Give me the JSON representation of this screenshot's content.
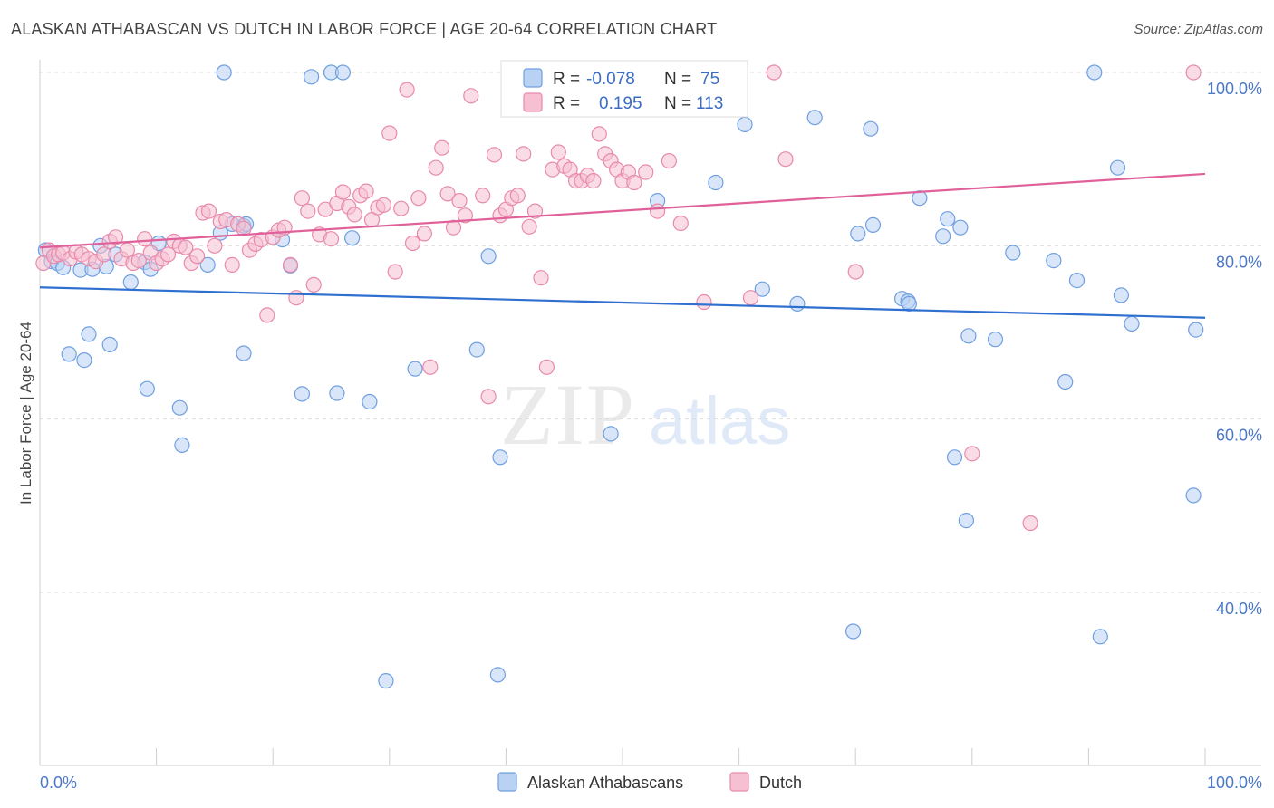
{
  "header": {
    "title": "ALASKAN ATHABASCAN VS DUTCH IN LABOR FORCE | AGE 20-64 CORRELATION CHART",
    "source": "Source: ZipAtlas.com"
  },
  "watermark": {
    "zip": "ZIP",
    "atlas": "atlas"
  },
  "stats_box": {
    "rows": [
      {
        "r_label": "R =",
        "r_value": "-0.078",
        "n_label": "N =",
        "n_value": "75",
        "color": "#6f9fe0",
        "fill": "#b9d2f4"
      },
      {
        "r_label": "R =",
        "r_value": "0.195",
        "n_label": "N =",
        "n_value": "113",
        "color": "#e88aaa",
        "fill": "#f6c0d2"
      }
    ]
  },
  "chart_data": {
    "type": "scatter",
    "title": "ALASKAN ATHABASCAN VS DUTCH IN LABOR FORCE | AGE 20-64 CORRELATION CHART",
    "xlabel": "",
    "ylabel": "In Labor Force | Age 20-64",
    "xlim": [
      0,
      100
    ],
    "ylim": [
      20,
      102
    ],
    "x_tick_labels": [
      "0.0%",
      "100.0%"
    ],
    "y_ticks": [
      40,
      60,
      80,
      100
    ],
    "y_tick_labels": [
      "40.0%",
      "60.0%",
      "80.0%",
      "100.0%"
    ],
    "grid": true,
    "legend_position": "bottom-center",
    "series": [
      {
        "name": "Alaskan Athabascans",
        "color": "#6f9fe0",
        "fill": "#b9d2f4",
        "trend": {
          "x": [
            0,
            100
          ],
          "y": [
            75.2,
            71.7
          ]
        },
        "points": [
          [
            0.5,
            79.5
          ],
          [
            1,
            78.2
          ],
          [
            1.5,
            78
          ],
          [
            2,
            77.5
          ],
          [
            2.5,
            67.5
          ],
          [
            3.5,
            77.2
          ],
          [
            3.8,
            66.8
          ],
          [
            4.2,
            69.8
          ],
          [
            4.5,
            77.3
          ],
          [
            5.2,
            80
          ],
          [
            5.7,
            77.6
          ],
          [
            6,
            68.6
          ],
          [
            6.5,
            79
          ],
          [
            7.8,
            75.8
          ],
          [
            9,
            78.1
          ],
          [
            9.2,
            63.5
          ],
          [
            9.5,
            77.3
          ],
          [
            10.2,
            80.3
          ],
          [
            12,
            61.3
          ],
          [
            12.2,
            57
          ],
          [
            14.4,
            77.8
          ],
          [
            15.5,
            81.5
          ],
          [
            15.8,
            100
          ],
          [
            16.5,
            82.5
          ],
          [
            17.5,
            82.3
          ],
          [
            17.5,
            67.6
          ],
          [
            17.7,
            82.5
          ],
          [
            20.8,
            80.7
          ],
          [
            21.5,
            77.7
          ],
          [
            22.5,
            62.9
          ],
          [
            23.3,
            99.5
          ],
          [
            25,
            100
          ],
          [
            25.5,
            63
          ],
          [
            26,
            100
          ],
          [
            26.8,
            80.9
          ],
          [
            28.3,
            62
          ],
          [
            32.2,
            65.8
          ],
          [
            37.5,
            68
          ],
          [
            38.5,
            78.8
          ],
          [
            39.5,
            55.6
          ],
          [
            39.3,
            30.5
          ],
          [
            49,
            58.3
          ],
          [
            53,
            85.2
          ],
          [
            58,
            87.3
          ],
          [
            60.5,
            94
          ],
          [
            62,
            75
          ],
          [
            65,
            73.3
          ],
          [
            66.5,
            94.8
          ],
          [
            69.8,
            35.5
          ],
          [
            70.2,
            81.4
          ],
          [
            71.3,
            93.5
          ],
          [
            71.5,
            82.4
          ],
          [
            74,
            73.9
          ],
          [
            74.5,
            73.6
          ],
          [
            74.6,
            73.3
          ],
          [
            75.5,
            85.5
          ],
          [
            77.5,
            81.1
          ],
          [
            77.9,
            83.1
          ],
          [
            78.5,
            55.6
          ],
          [
            79,
            82.1
          ],
          [
            79.5,
            48.3
          ],
          [
            79.7,
            69.6
          ],
          [
            82,
            69.2
          ],
          [
            83.5,
            79.2
          ],
          [
            87,
            78.3
          ],
          [
            88,
            64.3
          ],
          [
            89,
            76
          ],
          [
            90.5,
            100
          ],
          [
            91,
            34.9
          ],
          [
            92.5,
            89
          ],
          [
            92.8,
            74.3
          ],
          [
            93.7,
            71
          ],
          [
            99,
            51.2
          ],
          [
            99.2,
            70.3
          ],
          [
            29.7,
            29.8
          ]
        ]
      },
      {
        "name": "Dutch",
        "color": "#e88aaa",
        "fill": "#f6c0d2",
        "trend": {
          "x": [
            0,
            100
          ],
          "y": [
            79.8,
            88.3
          ]
        },
        "points": [
          [
            0.3,
            78
          ],
          [
            0.8,
            79.5
          ],
          [
            1.2,
            78.8
          ],
          [
            1.6,
            79
          ],
          [
            2,
            79.2
          ],
          [
            2.6,
            78.5
          ],
          [
            3.1,
            79.3
          ],
          [
            3.6,
            79
          ],
          [
            4.2,
            78.5
          ],
          [
            4.8,
            78.2
          ],
          [
            5.5,
            79
          ],
          [
            6,
            80.5
          ],
          [
            6.5,
            81
          ],
          [
            7,
            78.5
          ],
          [
            7.5,
            79.5
          ],
          [
            8,
            78
          ],
          [
            8.5,
            78.3
          ],
          [
            9,
            80.8
          ],
          [
            9.5,
            79.2
          ],
          [
            10,
            78
          ],
          [
            10.5,
            78.5
          ],
          [
            11,
            79
          ],
          [
            11.5,
            80.5
          ],
          [
            12,
            80
          ],
          [
            12.5,
            79.8
          ],
          [
            13,
            78
          ],
          [
            13.5,
            78.8
          ],
          [
            14,
            83.8
          ],
          [
            14.5,
            84
          ],
          [
            15,
            80
          ],
          [
            15.5,
            82.8
          ],
          [
            16,
            83
          ],
          [
            16.5,
            77.8
          ],
          [
            17,
            82.5
          ],
          [
            17.5,
            82
          ],
          [
            18,
            79.5
          ],
          [
            18.5,
            80.2
          ],
          [
            19,
            80.7
          ],
          [
            19.5,
            72
          ],
          [
            20,
            81
          ],
          [
            20.5,
            81.8
          ],
          [
            21,
            82.1
          ],
          [
            21.5,
            77.8
          ],
          [
            22,
            74
          ],
          [
            22.5,
            85.5
          ],
          [
            23,
            84
          ],
          [
            23.5,
            75.5
          ],
          [
            24,
            81.3
          ],
          [
            24.5,
            84.2
          ],
          [
            25,
            80.8
          ],
          [
            25.5,
            84.9
          ],
          [
            26,
            86.2
          ],
          [
            26.5,
            84.5
          ],
          [
            27,
            83.6
          ],
          [
            27.5,
            85.8
          ],
          [
            28,
            86.3
          ],
          [
            28.5,
            83
          ],
          [
            29,
            84.4
          ],
          [
            29.5,
            84.7
          ],
          [
            30,
            93
          ],
          [
            30.5,
            77
          ],
          [
            31,
            84.3
          ],
          [
            31.5,
            98
          ],
          [
            32,
            80.3
          ],
          [
            32.5,
            85.5
          ],
          [
            33,
            81.4
          ],
          [
            33.5,
            66
          ],
          [
            34,
            89
          ],
          [
            34.5,
            91.3
          ],
          [
            35,
            86
          ],
          [
            35.5,
            82.1
          ],
          [
            36,
            85.2
          ],
          [
            36.5,
            83.5
          ],
          [
            37,
            97.3
          ],
          [
            38,
            85.8
          ],
          [
            38.5,
            62.6
          ],
          [
            39,
            90.5
          ],
          [
            39.5,
            83.5
          ],
          [
            40,
            84.2
          ],
          [
            40.5,
            85.5
          ],
          [
            41,
            85.8
          ],
          [
            41.5,
            90.6
          ],
          [
            42,
            82.2
          ],
          [
            42.5,
            84
          ],
          [
            43,
            76.3
          ],
          [
            43.5,
            66
          ],
          [
            44,
            88.8
          ],
          [
            44.5,
            90.8
          ],
          [
            45,
            89.2
          ],
          [
            45.5,
            88.8
          ],
          [
            46,
            87.5
          ],
          [
            46.5,
            87.5
          ],
          [
            47,
            88.1
          ],
          [
            47.5,
            87.5
          ],
          [
            48,
            92.9
          ],
          [
            48.5,
            90.6
          ],
          [
            49,
            89.8
          ],
          [
            49.5,
            88.8
          ],
          [
            50,
            87.5
          ],
          [
            50.5,
            88.5
          ],
          [
            51,
            87.3
          ],
          [
            52,
            88.5
          ],
          [
            53,
            84
          ],
          [
            54,
            89.8
          ],
          [
            55,
            82.6
          ],
          [
            57,
            73.5
          ],
          [
            61,
            74
          ],
          [
            63,
            100
          ],
          [
            64,
            90
          ],
          [
            70,
            77
          ],
          [
            80,
            56
          ],
          [
            85,
            48
          ],
          [
            99,
            100
          ]
        ]
      }
    ]
  }
}
